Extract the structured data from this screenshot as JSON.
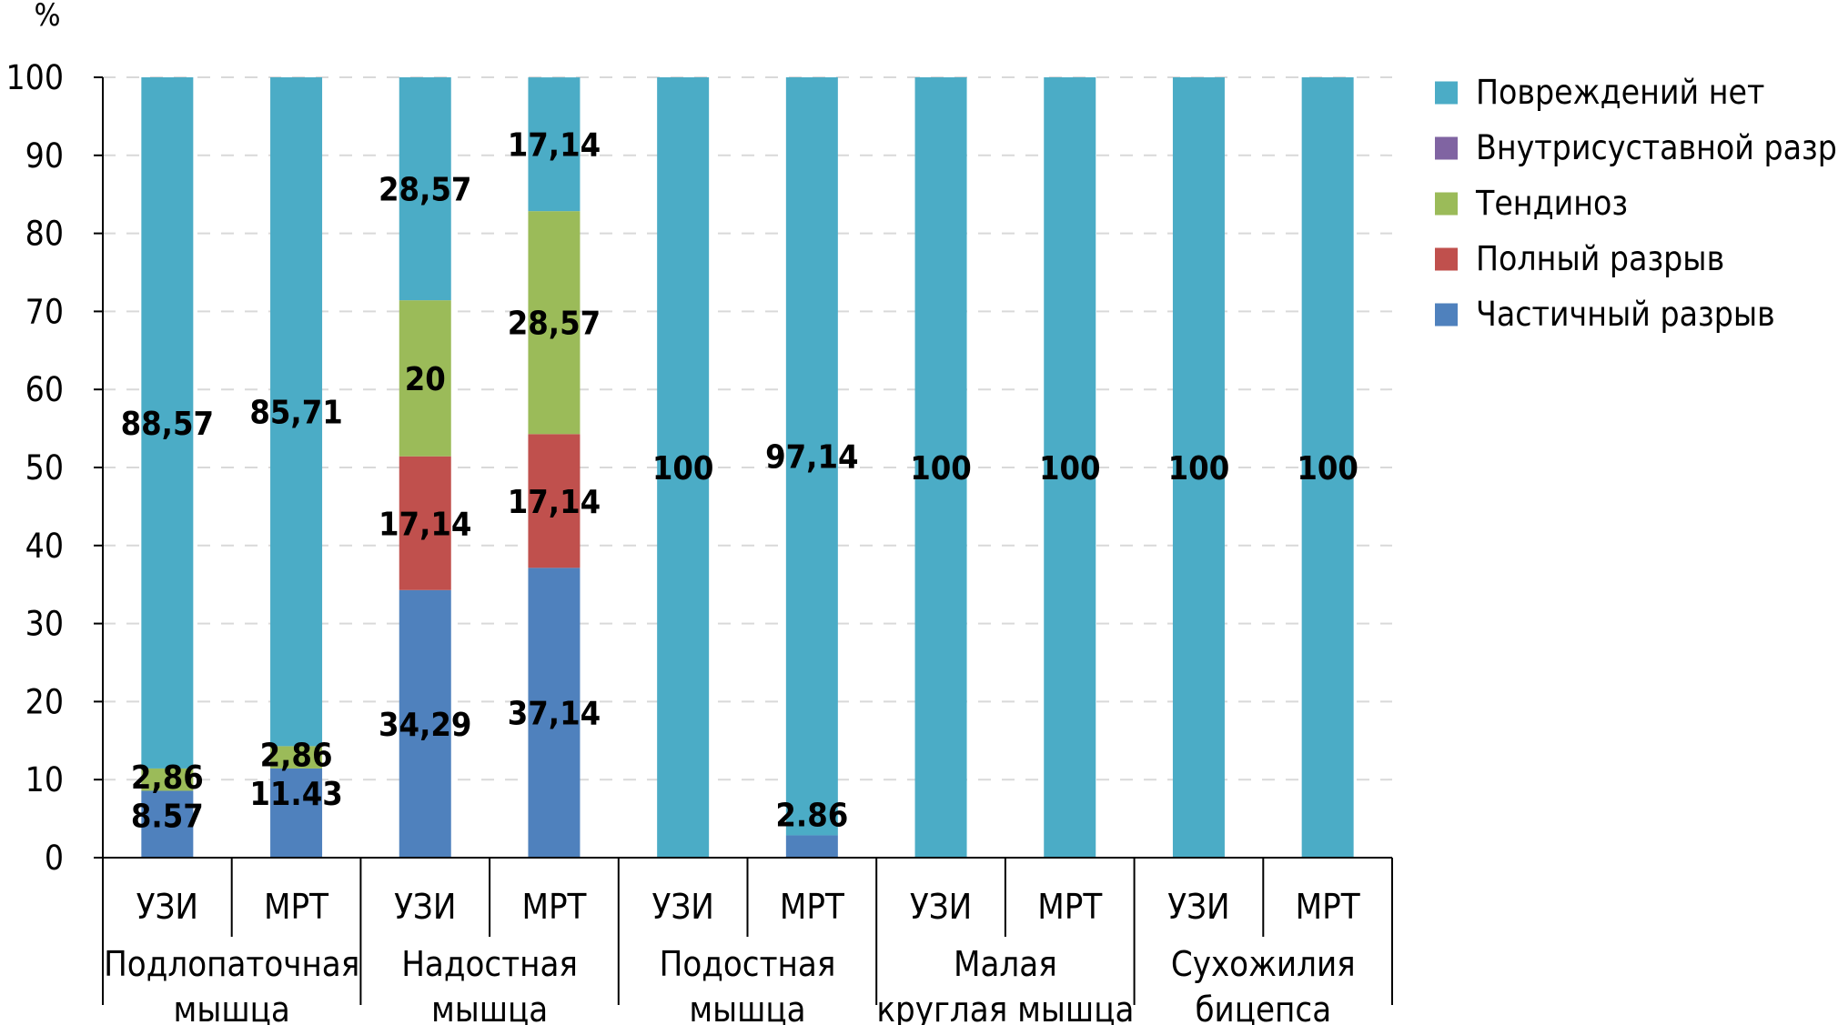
{
  "chart_data": {
    "type": "bar",
    "stacked": true,
    "ylabel": "%",
    "ylim": [
      0,
      100
    ],
    "yticks": [
      0,
      10,
      20,
      30,
      40,
      50,
      60,
      70,
      80,
      90,
      100
    ],
    "grid": true,
    "legend_position": "top-right",
    "categories": [
      "УЗИ",
      "МРТ",
      "УЗИ",
      "МРТ",
      "УЗИ",
      "МРТ",
      "УЗИ",
      "МРТ",
      "УЗИ",
      "МРТ"
    ],
    "groups": [
      {
        "lines": [
          "Подлопаточная",
          "мышца"
        ],
        "span": [
          0,
          1
        ]
      },
      {
        "lines": [
          "Надостная",
          "мышца"
        ],
        "span": [
          2,
          3
        ]
      },
      {
        "lines": [
          "Подостная",
          "мышца"
        ],
        "span": [
          4,
          5
        ]
      },
      {
        "lines": [
          "Малая",
          "круглая мышца"
        ],
        "span": [
          6,
          7
        ]
      },
      {
        "lines": [
          "Сухожилия",
          "бицепса"
        ],
        "span": [
          8,
          9
        ]
      }
    ],
    "series": [
      {
        "name": "Частичный разрыв",
        "color": "#4f81bd",
        "values": [
          8.57,
          11.43,
          34.29,
          37.14,
          0,
          2.86,
          0,
          0,
          0,
          0
        ],
        "labels": [
          "8.57",
          "11.43",
          "34,29",
          "37,14",
          "",
          "2.86",
          "",
          "",
          "",
          ""
        ]
      },
      {
        "name": "Полный разрыв",
        "color": "#c0504d",
        "values": [
          0,
          0,
          17.14,
          17.14,
          0,
          0,
          0,
          0,
          0,
          0
        ],
        "labels": [
          "",
          "",
          "17,14",
          "17,14",
          "",
          "",
          "",
          "",
          "",
          ""
        ]
      },
      {
        "name": "Тендиноз",
        "color": "#9bbb59",
        "values": [
          2.86,
          2.86,
          20,
          28.57,
          0,
          0,
          0,
          0,
          0,
          0
        ],
        "labels": [
          "2,86",
          "2,86",
          "20",
          "28,57",
          "",
          "",
          "",
          "",
          "",
          ""
        ]
      },
      {
        "name": "Внутрисуставной разрыв",
        "color": "#8064a2",
        "values": [
          0,
          0,
          0,
          0,
          0,
          0,
          0,
          0,
          0,
          0
        ],
        "labels": [
          "",
          "",
          "",
          "",
          "",
          "",
          "",
          "",
          "",
          ""
        ]
      },
      {
        "name": "Повреждений нет",
        "color": "#4bacc6",
        "values": [
          88.57,
          85.71,
          28.57,
          17.14,
          100,
          97.14,
          100,
          100,
          100,
          100
        ],
        "labels": [
          "88,57",
          "85,71",
          "28,57",
          "17,14",
          "100",
          "97,14",
          "100",
          "100",
          "100",
          "100"
        ]
      }
    ],
    "legend_order": [
      "Повреждений нет",
      "Внутрисуставной разрыв",
      "Тендиноз",
      "Полный разрыв",
      "Частичный разрыв"
    ]
  }
}
